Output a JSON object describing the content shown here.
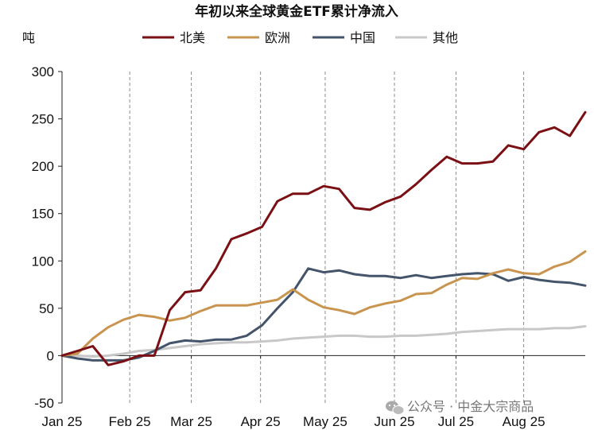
{
  "chart_data": {
    "type": "line",
    "title": "年初以来全球黄金ETF累计净流入",
    "ylabel": "吨",
    "xlabel": "",
    "ylim": [
      -50,
      300
    ],
    "yticks": [
      -50,
      0,
      50,
      100,
      150,
      200,
      250,
      300
    ],
    "x_tick_labels": [
      "Jan 25",
      "Feb 25",
      "Mar 25",
      "Apr 25",
      "May 25",
      "Jun 25",
      "Jul 25",
      "Aug 25"
    ],
    "x_tick_weeks": [
      0,
      4.4,
      8.4,
      12.9,
      17.1,
      21.6,
      25.6,
      30.0
    ],
    "month_dividers": [
      4.4,
      8.4,
      12.9,
      17.1,
      21.6,
      25.6,
      30.0
    ],
    "grid": "vertical dashed month dividers",
    "legend_position": "top",
    "watermark": "公众号 · 中金大宗商品",
    "x_unit": "week index from start of January 2025 (one point per week)",
    "series": [
      {
        "name": "北美",
        "color": "#7a0f14",
        "values": [
          0,
          5,
          10,
          -10,
          -6,
          0,
          0,
          48,
          67,
          69,
          92,
          123,
          129,
          136,
          163,
          171,
          171,
          179,
          176,
          156,
          154,
          162,
          168,
          181,
          196,
          210,
          203,
          203,
          205,
          222,
          218,
          236,
          241,
          232,
          257
        ]
      },
      {
        "name": "欧洲",
        "color": "#c9944f",
        "values": [
          0,
          2,
          18,
          30,
          38,
          43,
          41,
          37,
          40,
          47,
          53,
          53,
          53,
          56,
          59,
          70,
          59,
          51,
          48,
          44,
          51,
          55,
          58,
          65,
          66,
          75,
          82,
          81,
          87,
          91,
          87,
          86,
          94,
          99,
          110
        ]
      },
      {
        "name": "中国",
        "color": "#44546a",
        "values": [
          0,
          -3,
          -5,
          -5,
          -5,
          -2,
          5,
          13,
          16,
          15,
          17,
          17,
          21,
          32,
          50,
          67,
          92,
          88,
          90,
          86,
          84,
          84,
          82,
          85,
          82,
          84,
          86,
          87,
          86,
          79,
          83,
          80,
          78,
          77,
          74
        ]
      },
      {
        "name": "其他",
        "color": "#c8c8c8",
        "values": [
          0,
          0,
          -1,
          0,
          2,
          5,
          6,
          8,
          10,
          12,
          13,
          14,
          14,
          15,
          16,
          18,
          19,
          20,
          21,
          21,
          20,
          20,
          21,
          21,
          22,
          23,
          25,
          26,
          27,
          28,
          28,
          28,
          29,
          29,
          31
        ]
      }
    ]
  }
}
